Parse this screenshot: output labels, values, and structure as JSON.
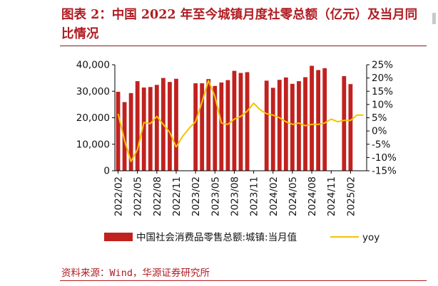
{
  "title": "图表 2：中国 2022 年至今城镇月度社零总额（亿元）及当月同比情况",
  "source": "资料来源：Wind，华源证券研究所",
  "colors": {
    "bar": "#c0221f",
    "line": "#f5c200",
    "axis": "#000000",
    "title": "#b01c22"
  },
  "chart_data": {
    "type": "bar",
    "categories": [
      "2022/02",
      "2022/03",
      "2022/04",
      "2022/05",
      "2022/06",
      "2022/07",
      "2022/08",
      "2022/09",
      "2022/10",
      "2022/11",
      "2022/12",
      "2023/01",
      "2023/02",
      "2023/03",
      "2023/04",
      "2023/05",
      "2023/06",
      "2023/07",
      "2023/08",
      "2023/09",
      "2023/10",
      "2023/11",
      "2023/12",
      "2024/01",
      "2024/02",
      "2024/03",
      "2024/04",
      "2024/05",
      "2024/06",
      "2024/07",
      "2024/08",
      "2024/09",
      "2024/10",
      "2024/11",
      "2024/12",
      "2025/01",
      "2025/02",
      "2025/03",
      "2025/04"
    ],
    "tick_labels": [
      "2022/02",
      "2022/05",
      "2022/08",
      "2022/11",
      "2023/02",
      "2023/05",
      "2023/08",
      "2023/11",
      "2024/02",
      "2024/05",
      "2024/08",
      "2024/11",
      "2025/02"
    ],
    "series": [
      {
        "name": "中国社会消费品零售总额:城镇:当月值",
        "type": "bar",
        "axis": "left",
        "values": [
          29800,
          25900,
          29300,
          33800,
          31400,
          31600,
          32400,
          35000,
          33500,
          34700,
          null,
          null,
          33000,
          33000,
          34600,
          32000,
          33300,
          34200,
          37700,
          36900,
          37200,
          null,
          null,
          34000,
          31300,
          34300,
          35200,
          32800,
          33800,
          35300,
          39600,
          38000,
          38700,
          null,
          null,
          35700,
          32700,
          null,
          null
        ]
      },
      {
        "name": "yoy",
        "type": "line",
        "axis": "right",
        "values": [
          6.5,
          -3.5,
          -11.5,
          -7.0,
          3.2,
          2.8,
          5.5,
          2.5,
          -0.5,
          -6.0,
          -2.0,
          1.0,
          3.5,
          11.0,
          19.0,
          13.0,
          3.0,
          2.5,
          4.5,
          5.5,
          7.5,
          10.5,
          8.0,
          6.5,
          6.0,
          5.0,
          3.5,
          2.5,
          3.0,
          2.0,
          2.5,
          2.5,
          3.0,
          4.5,
          3.5,
          4.0,
          4.0,
          6.0,
          6.0
        ]
      }
    ],
    "y_left": {
      "lim": [
        0,
        40000
      ],
      "ticks": [
        "0",
        "10,000",
        "20,000",
        "30,000",
        "40,000"
      ],
      "tick_values": [
        0,
        10000,
        20000,
        30000,
        40000
      ]
    },
    "y_right": {
      "lim": [
        -15,
        25
      ],
      "ticks": [
        "-15%",
        "-10%",
        "-5%",
        "0%",
        "5%",
        "10%",
        "15%",
        "20%",
        "25%"
      ],
      "tick_values": [
        -15,
        -10,
        -5,
        0,
        5,
        10,
        15,
        20,
        25
      ]
    },
    "xlabel": "",
    "ylabel": "",
    "legend_position": "bottom",
    "grid": false
  }
}
